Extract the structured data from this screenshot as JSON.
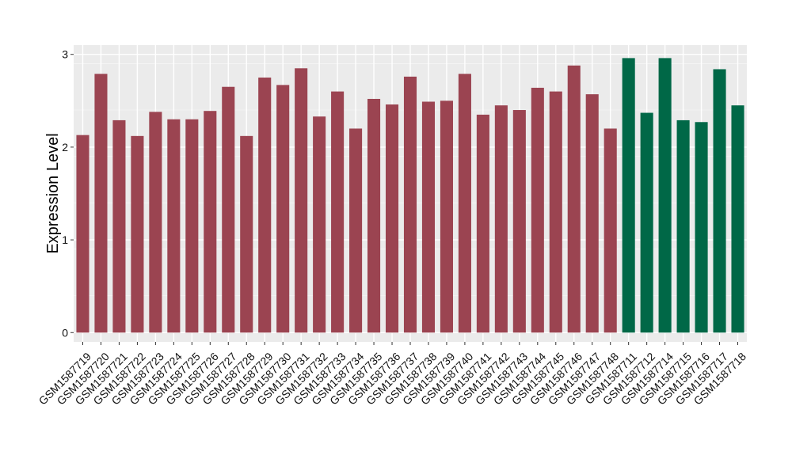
{
  "chart_data": {
    "type": "bar",
    "ylabel": "Expression Level",
    "xlabel": "",
    "ylim": [
      -0.1,
      3.1
    ],
    "yticks": [
      0,
      1,
      2,
      3
    ],
    "grid": true,
    "categories": [
      "GSM1587719",
      "GSM1587720",
      "GSM1587721",
      "GSM1587722",
      "GSM1587723",
      "GSM1587724",
      "GSM1587725",
      "GSM1587726",
      "GSM1587727",
      "GSM1587728",
      "GSM1587729",
      "GSM1587730",
      "GSM1587731",
      "GSM1587732",
      "GSM1587733",
      "GSM1587734",
      "GSM1587735",
      "GSM1587736",
      "GSM1587737",
      "GSM1587738",
      "GSM1587739",
      "GSM1587740",
      "GSM1587741",
      "GSM1587742",
      "GSM1587743",
      "GSM1587744",
      "GSM1587745",
      "GSM1587746",
      "GSM1587747",
      "GSM1587748",
      "GSM1587711",
      "GSM1587712",
      "GSM1587714",
      "GSM1587715",
      "GSM1587716",
      "GSM1587717",
      "GSM1587718"
    ],
    "values": [
      2.13,
      2.79,
      2.29,
      2.12,
      2.38,
      2.3,
      2.3,
      2.39,
      2.65,
      2.12,
      2.75,
      2.67,
      2.85,
      2.33,
      2.6,
      2.2,
      2.52,
      2.46,
      2.76,
      2.49,
      2.5,
      2.79,
      2.35,
      2.45,
      2.4,
      2.64,
      2.6,
      2.88,
      2.57,
      2.2,
      2.96,
      2.37,
      2.96,
      2.29,
      2.27,
      2.84,
      2.45
    ],
    "groups": [
      "a",
      "a",
      "a",
      "a",
      "a",
      "a",
      "a",
      "a",
      "a",
      "a",
      "a",
      "a",
      "a",
      "a",
      "a",
      "a",
      "a",
      "a",
      "a",
      "a",
      "a",
      "a",
      "a",
      "a",
      "a",
      "a",
      "a",
      "a",
      "a",
      "a",
      "b",
      "b",
      "b",
      "b",
      "b",
      "b",
      "b"
    ],
    "colors": {
      "a": "#9B4451",
      "b": "#006847"
    }
  }
}
